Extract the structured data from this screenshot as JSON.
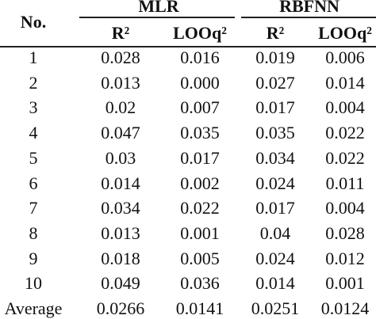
{
  "table": {
    "header": {
      "no": "No.",
      "groups": [
        "MLR",
        "RBFNN"
      ],
      "columns": [
        "R²",
        "LOOq²",
        "R²",
        "LOOq²"
      ]
    },
    "rows": [
      [
        "1",
        "0.028",
        "0.016",
        "0.019",
        "0.006"
      ],
      [
        "2",
        "0.013",
        "0.000",
        "0.027",
        "0.014"
      ],
      [
        "3",
        "0.02",
        "0.007",
        "0.017",
        "0.004"
      ],
      [
        "4",
        "0.047",
        "0.035",
        "0.035",
        "0.022"
      ],
      [
        "5",
        "0.03",
        "0.017",
        "0.034",
        "0.022"
      ],
      [
        "6",
        "0.014",
        "0.002",
        "0.024",
        "0.011"
      ],
      [
        "7",
        "0.034",
        "0.022",
        "0.017",
        "0.004"
      ],
      [
        "8",
        "0.013",
        "0.001",
        "0.04",
        "0.028"
      ],
      [
        "9",
        "0.018",
        "0.005",
        "0.024",
        "0.012"
      ],
      [
        "10",
        "0.049",
        "0.036",
        "0.014",
        "0.001"
      ],
      [
        "Average",
        "0.0266",
        "0.0141",
        "0.0251",
        "0.0124"
      ]
    ]
  }
}
